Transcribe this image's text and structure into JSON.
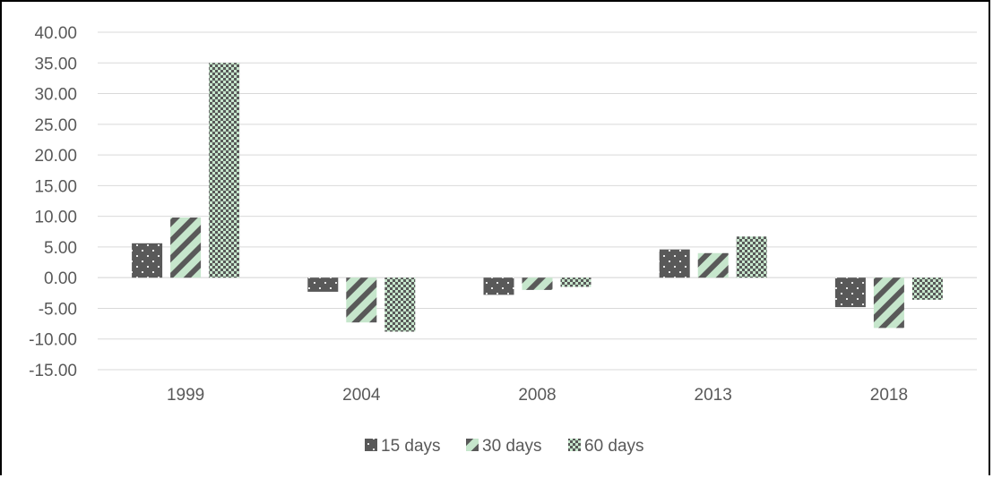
{
  "chart_data": {
    "type": "bar",
    "categories": [
      "1999",
      "2004",
      "2008",
      "2013",
      "2018"
    ],
    "series": [
      {
        "name": "15 days",
        "values": [
          5.6,
          -2.3,
          -2.8,
          4.6,
          -4.8
        ],
        "color": "#595959",
        "pattern": "sparse-dots"
      },
      {
        "name": "30 days",
        "values": [
          9.8,
          -7.3,
          -2.0,
          4.0,
          -8.2
        ],
        "color": "#c6e6cc",
        "pattern": "diagonal-stripes"
      },
      {
        "name": "60 days",
        "values": [
          35.0,
          -8.8,
          -1.5,
          6.7,
          -3.6
        ],
        "color": "#595959",
        "pattern": "checker-dots"
      }
    ],
    "ylim": [
      -15,
      40
    ],
    "yticks": [
      "40.00",
      "35.00",
      "30.00",
      "25.00",
      "20.00",
      "15.00",
      "10.00",
      "5.00",
      "0.00",
      "-5.00",
      "-10.00",
      "-15.00"
    ],
    "title": "",
    "xlabel": "",
    "ylabel": "",
    "grid": true,
    "legend_position": "bottom"
  }
}
